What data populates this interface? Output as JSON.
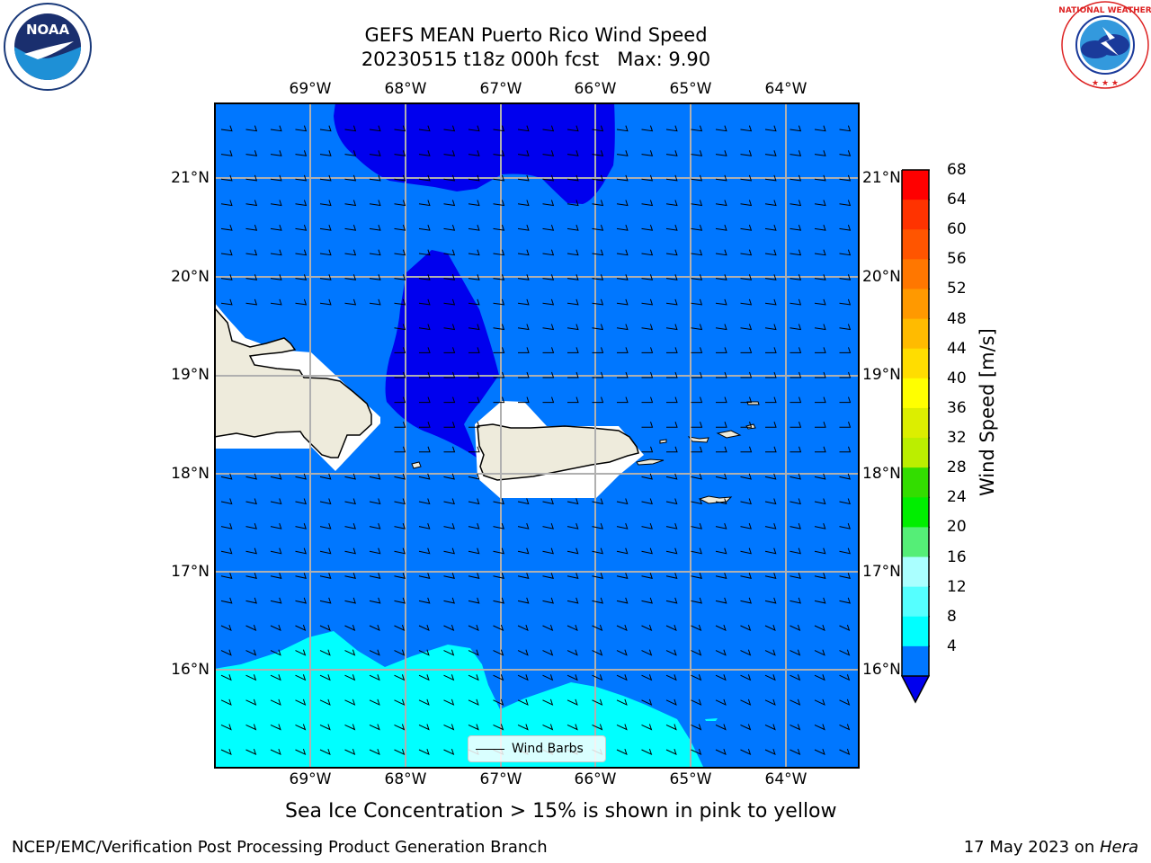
{
  "title": {
    "line1": "GEFS MEAN Puerto Rico Wind Speed",
    "line2": "20230515 t18z 000h fcst   Max: 9.90"
  },
  "map": {
    "lon_labels": [
      "69°W",
      "68°W",
      "67°W",
      "66°W",
      "65°W",
      "64°W"
    ],
    "lat_labels": [
      "21°N",
      "20°N",
      "19°N",
      "18°N",
      "17°N",
      "16°N"
    ],
    "legend_label": "Wind Barbs"
  },
  "colorbar": {
    "title": "Wind Speed [m/s]",
    "levels": [
      "68",
      "64",
      "60",
      "56",
      "52",
      "48",
      "44",
      "40",
      "36",
      "32",
      "28",
      "24",
      "20",
      "16",
      "12",
      "8",
      "4"
    ],
    "colors": [
      "#ff0000",
      "#ff3300",
      "#ff5500",
      "#ff7700",
      "#ff9900",
      "#ffbb00",
      "#ffdd00",
      "#ffff00",
      "#dcee00",
      "#bbee00",
      "#33dd00",
      "#00ee00",
      "#55ee77",
      "#aaffff",
      "#55ffff",
      "#00ffff",
      "#0077ff"
    ],
    "under_color": "#0000ee"
  },
  "footnote": "Sea Ice Concentration > 15% is shown in pink to yellow",
  "footer": {
    "left": "NCEP/EMC/Verification Post Processing Product Generation Branch",
    "date": "17 May 2023 on ",
    "machine": "Hera"
  },
  "logos": {
    "noaa": "NOAA",
    "nws": "NATIONAL WEATHER SERVICE"
  }
}
